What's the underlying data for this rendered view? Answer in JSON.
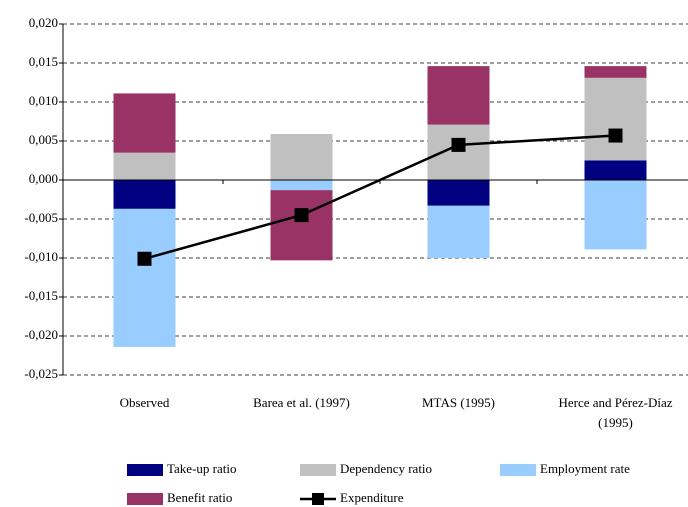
{
  "chart_data": {
    "type": "stacked-bar-line",
    "categories": [
      "Observed",
      "Barea et al. (1997)",
      "MTAS (1995)",
      "Herce and Pérez-Díaz (1995)"
    ],
    "series": [
      {
        "name": "Take-up ratio",
        "color": "#000080",
        "values": [
          -0.0037,
          0,
          -0.0033,
          0.0025
        ]
      },
      {
        "name": "Dependency ratio",
        "color": "#c0c0c0",
        "values": [
          0.0035,
          0.0059,
          0.0071,
          0.0106
        ]
      },
      {
        "name": "Employment rate",
        "color": "#99ccff",
        "values": [
          -0.0177,
          -0.0013,
          -0.0067,
          -0.0089
        ]
      },
      {
        "name": "Benefit ratio",
        "color": "#993366",
        "values": [
          0.0076,
          -0.009,
          0.0075,
          0.0015
        ]
      },
      {
        "name": "Expenditure",
        "color": "#000000",
        "type": "line",
        "values": [
          -0.0101,
          -0.0045,
          0.0045,
          0.0057
        ]
      }
    ],
    "ylim": [
      -0.025,
      0.02
    ],
    "yticks": [
      {
        "value": -0.025,
        "label": "-0,025"
      },
      {
        "value": -0.02,
        "label": "-0,020"
      },
      {
        "value": -0.015,
        "label": "-0,015"
      },
      {
        "value": -0.01,
        "label": "-0,010"
      },
      {
        "value": -0.005,
        "label": "-0,005"
      },
      {
        "value": 0,
        "label": "0,000"
      },
      {
        "value": 0.005,
        "label": "0,005"
      },
      {
        "value": 0.01,
        "label": "0,010"
      },
      {
        "value": 0.015,
        "label": "0,015"
      },
      {
        "value": 0.02,
        "label": "0,020"
      }
    ],
    "grid": true
  }
}
